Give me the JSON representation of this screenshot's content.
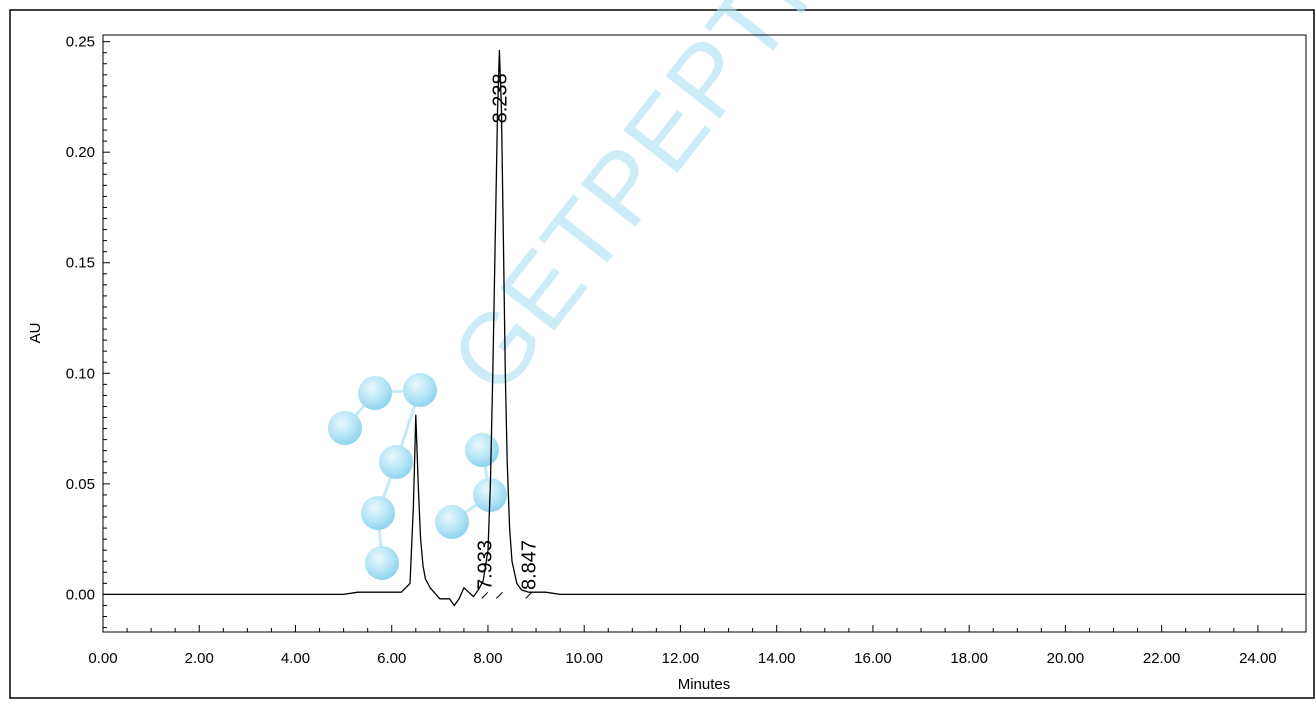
{
  "chart_data": {
    "type": "line",
    "xlabel": "Minutes",
    "ylabel": "AU",
    "xlim": [
      0,
      25
    ],
    "ylim": [
      -0.017,
      0.253
    ],
    "x_ticks": [
      "0.00",
      "2.00",
      "4.00",
      "6.00",
      "8.00",
      "10.00",
      "12.00",
      "14.00",
      "16.00",
      "18.00",
      "20.00",
      "22.00",
      "24.00"
    ],
    "y_ticks": [
      "0.00",
      "0.05",
      "0.10",
      "0.15",
      "0.20",
      "0.25"
    ],
    "grid": false,
    "series": [
      {
        "color": "#000000",
        "x": [
          0,
          5.0,
          5.3,
          5.8,
          6.2,
          6.38,
          6.45,
          6.5,
          6.55,
          6.6,
          6.65,
          6.7,
          6.8,
          7.0,
          7.2,
          7.3,
          7.4,
          7.5,
          7.6,
          7.7,
          7.8,
          7.9,
          8.0,
          8.05,
          8.1,
          8.15,
          8.2,
          8.238,
          8.28,
          8.32,
          8.36,
          8.4,
          8.45,
          8.5,
          8.6,
          8.7,
          8.847,
          9.0,
          9.2,
          9.5,
          10.0,
          25.0
        ],
        "y": [
          0,
          0,
          0.001,
          0.001,
          0.001,
          0.005,
          0.04,
          0.081,
          0.05,
          0.025,
          0.013,
          0.007,
          0.003,
          -0.002,
          -0.002,
          -0.005,
          -0.002,
          0.003,
          0.001,
          -0.001,
          0.002,
          0.006,
          0.02,
          0.05,
          0.1,
          0.16,
          0.22,
          0.246,
          0.22,
          0.16,
          0.1,
          0.06,
          0.03,
          0.015,
          0.005,
          0.002,
          0.001,
          0.001,
          0.001,
          0.0,
          0,
          0
        ]
      }
    ],
    "peak_labels": [
      {
        "label": "7.933",
        "x": 7.933
      },
      {
        "label": "8.238",
        "x": 8.238
      },
      {
        "label": "8.847",
        "x": 8.847
      }
    ],
    "watermark": "GETPEPTIDE"
  }
}
